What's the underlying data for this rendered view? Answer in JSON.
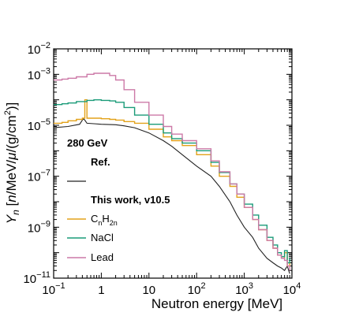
{
  "chart_data": {
    "type": "line",
    "xlabel": "Neutron energy [MeV]",
    "ylabel": "Y_n [n/MeV/μ/(g/cm²)]",
    "xscale": "log",
    "yscale": "log",
    "xlim": [
      0.1,
      10000
    ],
    "ylim": [
      1e-11,
      0.01
    ],
    "x_ticks": [
      0.1,
      1,
      10,
      100,
      1000,
      10000
    ],
    "x_tick_labels": [
      {
        "base": "10",
        "exp": "−1"
      },
      {
        "base": "1",
        "exp": ""
      },
      {
        "base": "10",
        "exp": ""
      },
      {
        "base": "10",
        "exp": "2"
      },
      {
        "base": "10",
        "exp": "3"
      },
      {
        "base": "10",
        "exp": "4"
      }
    ],
    "y_ticks": [
      1e-11,
      1e-09,
      1e-07,
      1e-05,
      0.001,
      0.01
    ],
    "y_tick_labels": [
      {
        "base": "10",
        "exp": "−11"
      },
      {
        "base": "10",
        "exp": "−9"
      },
      {
        "base": "10",
        "exp": "−7"
      },
      {
        "base": "10",
        "exp": "−5"
      },
      {
        "base": "10",
        "exp": "−3"
      },
      {
        "base": "10",
        "exp": "−2"
      }
    ],
    "grid": false,
    "legend": {
      "placement": "bottom-left",
      "energy_label": "280 GeV",
      "ref_label": "Ref.",
      "work_label": "This work, v10.5"
    },
    "series": [
      {
        "name": "Ref.",
        "color": "#222222",
        "style": "line",
        "x": [
          0.1,
          0.2,
          0.35,
          0.42,
          0.45,
          0.5,
          0.7,
          1,
          2,
          3,
          5,
          10,
          20,
          30,
          50,
          100,
          200,
          300,
          500,
          700,
          1000,
          1500,
          2000,
          3000,
          4000,
          5000,
          6000,
          7000,
          8000,
          9000
        ],
        "y": [
          8e-06,
          9e-06,
          1.1e-05,
          1.8e-05,
          1.6e-05,
          1.2e-05,
          1.15e-05,
          1.1e-05,
          1.05e-05,
          9.5e-06,
          8e-06,
          5e-06,
          2.5e-06,
          1.5e-06,
          7e-07,
          2.5e-07,
          1e-07,
          4e-08,
          1e-08,
          3e-09,
          1e-09,
          4e-10,
          1.5e-10,
          6e-11,
          4e-11,
          3e-11,
          2.5e-11,
          2e-11,
          3e-11,
          1.5e-11
        ]
      },
      {
        "name": "CnH2n",
        "label_base": "C",
        "label_sub1": "n",
        "label_mid": "H",
        "label_sub2": "2n",
        "color": "#E3A21A",
        "style": "step",
        "x": [
          0.1,
          0.15,
          0.2,
          0.3,
          0.4,
          0.45,
          0.5,
          0.7,
          1,
          1.5,
          2,
          3,
          5,
          10,
          20,
          30,
          50,
          100,
          200,
          300,
          500,
          700,
          1000,
          1500,
          2000,
          3000,
          4000,
          5000,
          6000,
          7000,
          8000,
          9000
        ],
        "y": [
          1.2e-05,
          1.3e-05,
          1.5e-05,
          1.7e-05,
          1.9e-05,
          0.0001,
          1.9e-05,
          1.9e-05,
          1.8e-05,
          1.7e-05,
          1.6e-05,
          1.4e-05,
          1.2e-05,
          7e-06,
          3.5e-06,
          2.5e-06,
          1.6e-06,
          7e-07,
          2.5e-07,
          1e-07,
          4e-08,
          1.5e-08,
          6e-09,
          2e-09,
          8e-10,
          3e-10,
          1.5e-10,
          8e-11,
          6e-11,
          1e-10,
          3e-11,
          5e-11
        ]
      },
      {
        "name": "NaCl",
        "color": "#1A9B78",
        "style": "step",
        "x": [
          0.1,
          0.15,
          0.2,
          0.3,
          0.5,
          0.7,
          1,
          1.5,
          2,
          3,
          5,
          10,
          20,
          30,
          50,
          100,
          200,
          300,
          500,
          700,
          1000,
          1500,
          2000,
          3000,
          4000,
          5000,
          6000,
          7000,
          8000,
          9000
        ],
        "y": [
          6.5e-05,
          7e-05,
          7.5e-05,
          8.5e-05,
          9.5e-05,
          0.0001,
          9.5e-05,
          9e-05,
          8e-05,
          5e-05,
          2.5e-05,
          1.1e-05,
          5e-06,
          3e-06,
          2e-06,
          1e-06,
          3.5e-07,
          1.4e-07,
          5e-08,
          2e-08,
          8e-09,
          3e-09,
          1.2e-09,
          4e-10,
          2e-10,
          1e-10,
          7e-11,
          1.2e-10,
          4e-11,
          6e-11
        ]
      },
      {
        "name": "Lead",
        "color": "#CC79A7",
        "style": "step",
        "x": [
          0.1,
          0.15,
          0.2,
          0.3,
          0.5,
          0.7,
          1,
          1.5,
          2,
          3,
          5,
          10,
          20,
          30,
          50,
          100,
          200,
          300,
          500,
          700,
          1000,
          1500,
          2000,
          3000,
          4000,
          5000,
          6000,
          7000,
          8000,
          9000
        ],
        "y": [
          0.0006,
          0.00065,
          0.0007,
          0.0008,
          0.001,
          0.0011,
          0.0011,
          0.0009,
          0.0006,
          0.00025,
          8e-05,
          2.5e-05,
          9e-06,
          4.5e-06,
          2.5e-06,
          1.2e-06,
          4e-07,
          1.5e-07,
          5e-08,
          2e-08,
          6e-09,
          2e-09,
          8e-10,
          3e-10,
          1.5e-10,
          8e-11,
          6e-11,
          5e-11,
          3e-11,
          2e-11
        ]
      }
    ]
  }
}
